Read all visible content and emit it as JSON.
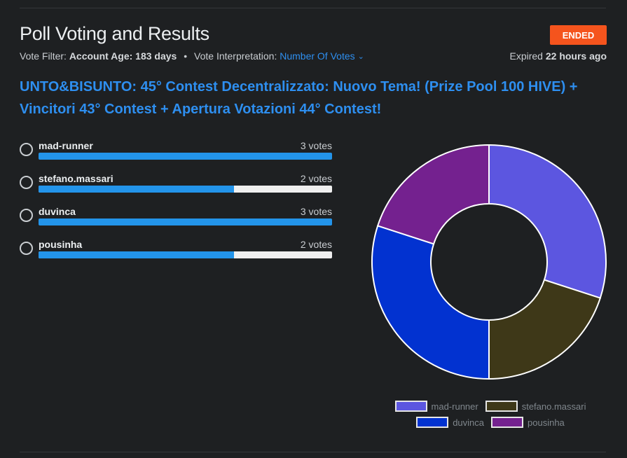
{
  "header": {
    "title": "Poll Voting and Results",
    "status_badge": "ENDED",
    "vote_filter_label": "Vote Filter:",
    "vote_filter_value": "Account Age: 183 days",
    "separator": "•",
    "interpretation_label": "Vote Interpretation:",
    "interpretation_value": "Number Of Votes",
    "expired_label": "Expired",
    "expired_value": "22 hours ago"
  },
  "question": "UNTO&BISUNTO: 45° Contest Decentralizzato: Nuovo Tema! (Prize Pool 100 HIVE) + Vincitori 43° Contest + Apertura Votazioni 44° Contest!",
  "options": [
    {
      "label": "mad-runner",
      "votes_text": "3 votes",
      "share": 1.0
    },
    {
      "label": "stefano.massari",
      "votes_text": "2 votes",
      "share": 0.667
    },
    {
      "label": "duvinca",
      "votes_text": "3 votes",
      "share": 1.0
    },
    {
      "label": "pousinha",
      "votes_text": "2 votes",
      "share": 0.667
    }
  ],
  "chart_data": {
    "type": "pie",
    "donut": true,
    "categories": [
      "mad-runner",
      "stefano.massari",
      "duvinca",
      "pousinha"
    ],
    "values": [
      3,
      2,
      3,
      2
    ],
    "colors": [
      "#5c56e0",
      "#3e3818",
      "#0232d0",
      "#74218f"
    ],
    "legend_position": "bottom",
    "title": ""
  }
}
